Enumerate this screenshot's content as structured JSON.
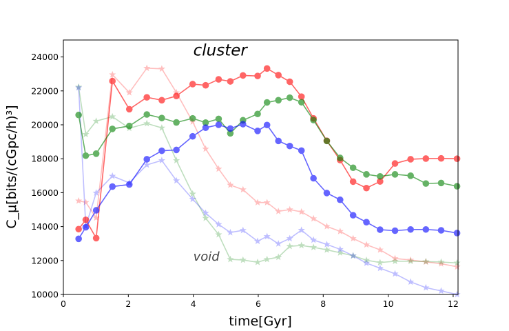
{
  "chart_data": {
    "type": "line",
    "title": "",
    "xlabel": "time[Gyr]",
    "ylabel": "C_μ[bits/(cGpc/h)³]",
    "xlim": [
      0,
      12.15
    ],
    "ylim": [
      10000,
      25000
    ],
    "xticks": [
      0,
      2,
      4,
      6,
      8,
      10,
      12
    ],
    "yticks": [
      10000,
      12000,
      14000,
      16000,
      18000,
      20000,
      22000,
      24000
    ],
    "x": [
      0.47,
      0.69,
      1.01,
      1.51,
      2.03,
      2.57,
      3.03,
      3.48,
      3.98,
      4.38,
      4.78,
      5.14,
      5.53,
      5.98,
      6.27,
      6.62,
      6.97,
      7.33,
      7.7,
      8.11,
      8.52,
      8.92,
      9.33,
      9.75,
      10.21,
      10.69,
      11.16,
      11.63,
      12.12
    ],
    "series": [
      {
        "name": "cluster red",
        "color": "#ff0000",
        "marker": "circle",
        "alpha": 0.6,
        "values": [
          13850,
          14400,
          13320,
          22580,
          20920,
          21620,
          21450,
          21700,
          22400,
          22330,
          22680,
          22560,
          22910,
          22880,
          23320,
          22930,
          22540,
          21660,
          20380,
          19060,
          17920,
          16650,
          16270,
          16660,
          17720,
          17970,
          18010,
          18020,
          18000
        ]
      },
      {
        "name": "cluster green",
        "color": "#008000",
        "marker": "circle",
        "alpha": 0.6,
        "values": [
          20580,
          18180,
          18300,
          19760,
          19930,
          20610,
          20400,
          20140,
          20380,
          20130,
          20350,
          19500,
          20270,
          20640,
          21320,
          21450,
          21600,
          21330,
          20280,
          19050,
          18050,
          17470,
          17080,
          16960,
          17080,
          17000,
          16540,
          16570,
          16380
        ]
      },
      {
        "name": "cluster blue",
        "color": "#0000ff",
        "marker": "circle",
        "alpha": 0.6,
        "values": [
          13280,
          13960,
          14960,
          16360,
          16480,
          17970,
          18470,
          18520,
          19320,
          19830,
          20000,
          19780,
          20040,
          19640,
          19990,
          19050,
          18750,
          18480,
          16850,
          15980,
          15580,
          14670,
          14260,
          13820,
          13760,
          13830,
          13830,
          13780,
          13620
        ]
      },
      {
        "name": "void red",
        "color": "#ff0000",
        "marker": "star",
        "alpha": 0.25,
        "values": [
          15520,
          15430,
          14520,
          22960,
          21900,
          23340,
          23300,
          21900,
          20180,
          18580,
          17400,
          16450,
          16180,
          15420,
          15420,
          14900,
          15000,
          14870,
          14470,
          14010,
          13720,
          13300,
          12930,
          12630,
          12120,
          12030,
          11920,
          11810,
          11630
        ]
      },
      {
        "name": "void green",
        "color": "#008000",
        "marker": "star",
        "alpha": 0.25,
        "values": [
          22230,
          19440,
          20220,
          20480,
          19800,
          20080,
          19820,
          17900,
          15930,
          14500,
          13530,
          12070,
          12030,
          11900,
          12070,
          12200,
          12840,
          12890,
          12780,
          12630,
          12460,
          12280,
          12020,
          11880,
          11960,
          11960,
          11940,
          11910,
          11860
        ]
      },
      {
        "name": "void blue",
        "color": "#0000ff",
        "marker": "star",
        "alpha": 0.25,
        "values": [
          22190,
          14020,
          15990,
          16980,
          16580,
          17640,
          17900,
          16710,
          15620,
          14800,
          14130,
          13650,
          13780,
          13140,
          13420,
          12990,
          13300,
          13790,
          13210,
          12950,
          12660,
          12280,
          11850,
          11550,
          11220,
          10740,
          10400,
          10210,
          10000
        ]
      }
    ],
    "annotations": [
      {
        "text": "cluster",
        "x": 4.0,
        "y": 24080
      },
      {
        "text": "void",
        "x": 4.0,
        "y": 12000
      }
    ]
  }
}
